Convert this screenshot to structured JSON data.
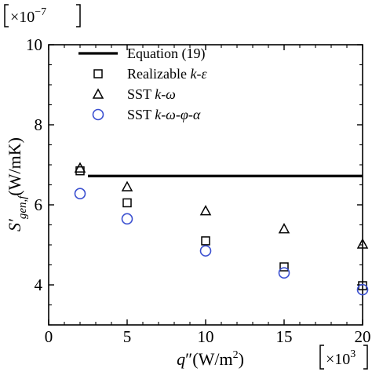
{
  "chart_data": {
    "type": "scatter",
    "title": "",
    "xlabel": {
      "base": "q",
      "prime": "″",
      "unit_open": "(W/m",
      "unit_sup": "2",
      "unit_close": ")"
    },
    "ylabel": {
      "base": "S′",
      "sub": "gen,f",
      "unit": "(W/mK)"
    },
    "x_multiplier": {
      "base": "×10",
      "exp": "3"
    },
    "y_multiplier": {
      "base": "×10",
      "exp": "−7"
    },
    "xlim": [
      0,
      20
    ],
    "ylim": [
      3,
      10
    ],
    "xticks": [
      0,
      5,
      10,
      15,
      20
    ],
    "yticks": [
      4,
      6,
      8,
      10
    ],
    "grid": false,
    "legend_position": "top-left",
    "series": [
      {
        "name_parts": [
          "Equation (19)"
        ],
        "marker": "line",
        "color": "#000000",
        "x": [
          2.5,
          20
        ],
        "y": [
          6.72,
          6.72
        ]
      },
      {
        "name_parts": [
          "Realizable ",
          "k-ε"
        ],
        "marker": "square",
        "color": "#000000",
        "x": [
          2,
          5,
          10,
          15,
          20
        ],
        "y": [
          6.85,
          6.05,
          5.1,
          4.45,
          3.98
        ]
      },
      {
        "name_parts": [
          "SST ",
          "k-ω"
        ],
        "marker": "triangle",
        "color": "#000000",
        "x": [
          2,
          5,
          10,
          15,
          20
        ],
        "y": [
          6.92,
          6.45,
          5.85,
          5.4,
          5.02
        ]
      },
      {
        "name_parts": [
          "SST ",
          "k-ω-φ-α"
        ],
        "marker": "circle",
        "color": "#3a4fd0",
        "x": [
          2,
          5,
          10,
          15,
          20
        ],
        "y": [
          6.28,
          5.65,
          4.85,
          4.3,
          3.88
        ]
      }
    ]
  }
}
